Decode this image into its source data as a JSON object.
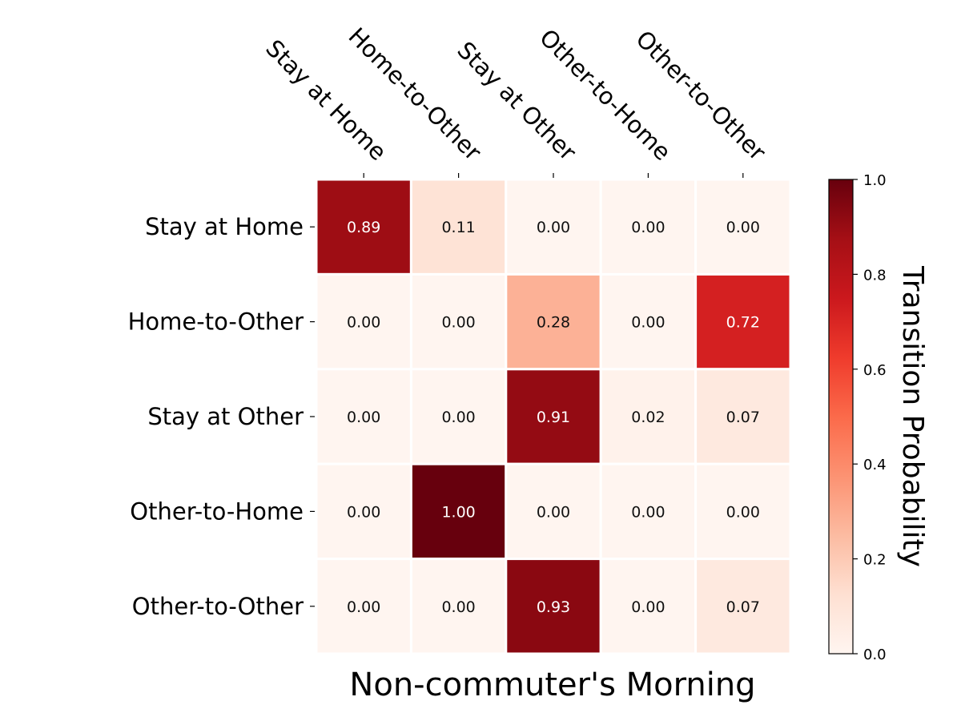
{
  "chart_data": {
    "type": "heatmap",
    "title": "",
    "xlabel": "Non-commuter's Morning",
    "colorbar_label": "Transition Probability",
    "row_labels": [
      "Stay at Home",
      "Home-to-Other",
      "Stay at Other",
      "Other-to-Home",
      "Other-to-Other"
    ],
    "col_labels": [
      "Stay at Home",
      "Home-to-Other",
      "Stay at Other",
      "Other-to-Home",
      "Other-to-Other"
    ],
    "values": [
      [
        0.89,
        0.11,
        0.0,
        0.0,
        0.0
      ],
      [
        0.0,
        0.0,
        0.28,
        0.0,
        0.72
      ],
      [
        0.0,
        0.0,
        0.91,
        0.02,
        0.07
      ],
      [
        0.0,
        1.0,
        0.0,
        0.0,
        0.0
      ],
      [
        0.0,
        0.0,
        0.93,
        0.0,
        0.07
      ]
    ],
    "cell_labels": [
      [
        "0.89",
        "0.11",
        "0.00",
        "0.00",
        "0.00"
      ],
      [
        "0.00",
        "0.00",
        "0.28",
        "0.00",
        "0.72"
      ],
      [
        "0.00",
        "0.00",
        "0.91",
        "0.02",
        "0.07"
      ],
      [
        "0.00",
        "1.00",
        "0.00",
        "0.00",
        "0.00"
      ],
      [
        "0.00",
        "0.00",
        "0.93",
        "0.00",
        "0.07"
      ]
    ],
    "colorbar_range": [
      0.0,
      1.0
    ],
    "colorbar_ticks": [
      "0.0",
      "0.2",
      "0.4",
      "0.6",
      "0.8",
      "1.0"
    ],
    "colormap": "Reds",
    "colormap_stops": [
      "#fff5f0",
      "#fee0d2",
      "#fcbba1",
      "#fc9272",
      "#fb6a4a",
      "#ef3b2c",
      "#cb181d",
      "#a50f15",
      "#67000d"
    ],
    "x_labels_position": "top",
    "grid": false
  }
}
